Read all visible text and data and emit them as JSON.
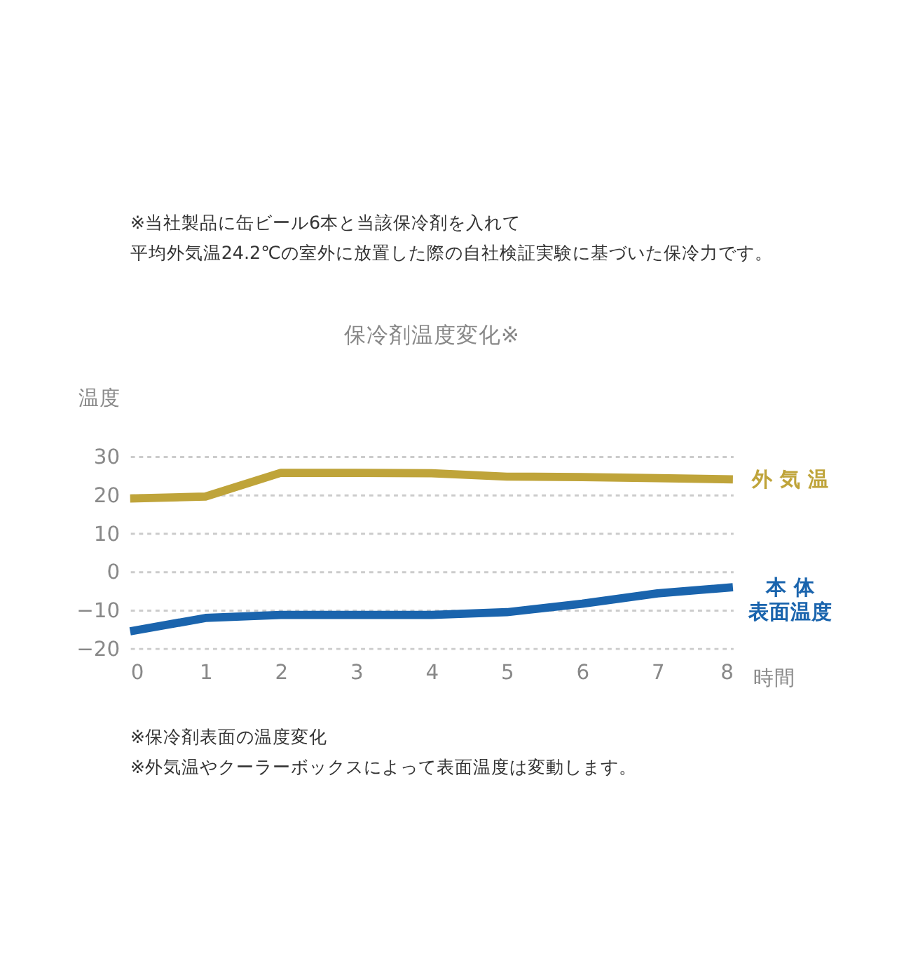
{
  "chart_data": {
    "type": "line",
    "title": "保冷剤温度変化※",
    "xlabel": "時間",
    "ylabel": "温度",
    "x": [
      0,
      1,
      2,
      3,
      4,
      5,
      6,
      7,
      8
    ],
    "series": [
      {
        "name": "外 気 温",
        "color": "#bfa43a",
        "values": [
          19,
          19.5,
          25.7,
          25.7,
          25.6,
          24.7,
          24.6,
          24.3,
          24
        ]
      },
      {
        "name": [
          "本 体",
          "表面温度"
        ],
        "color": "#1a64ad",
        "values": [
          -15.6,
          -12.1,
          -11.3,
          -11.3,
          -11.3,
          -10.6,
          -8.4,
          -5.7,
          -4.1
        ]
      }
    ],
    "xlim": [
      0,
      8
    ],
    "xticks": [
      0,
      1,
      2,
      3,
      4,
      5,
      6,
      7,
      8
    ],
    "ylim": [
      -20,
      30
    ],
    "yticks": [
      -20,
      -10,
      0,
      10,
      20,
      30
    ],
    "grid": "y",
    "marker": "none",
    "line_style": "solid",
    "annotations": [
      "※当社製品に缶ビール6本と当該保冷剤を入れて",
      "平均外気温24.2℃の室外に放置した際の自社検証実験に基づいた保冷力です。",
      "※保冷剤表面の温度変化",
      "※外気温やクーラーボックスによって表面温度は変動します。"
    ]
  }
}
